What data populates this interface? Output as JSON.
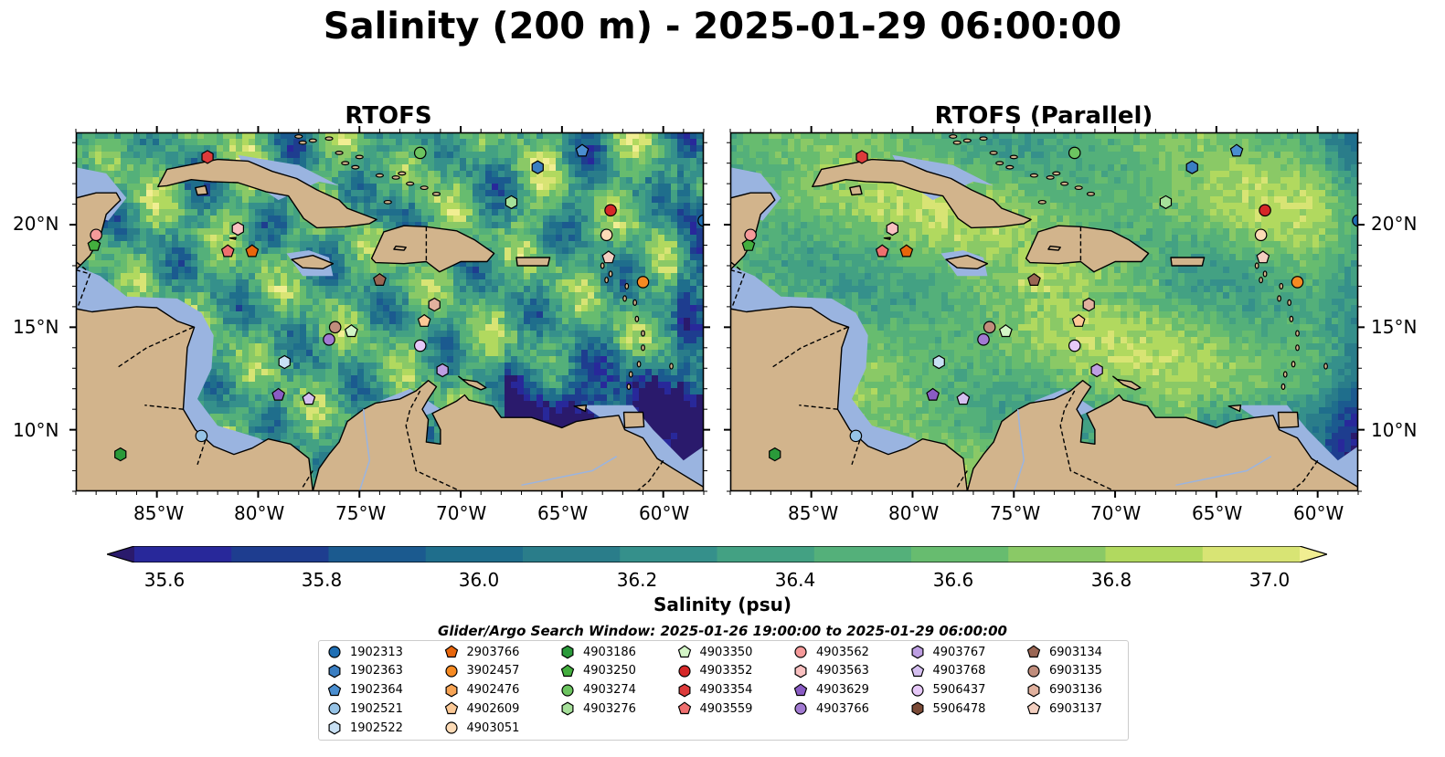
{
  "title": "Salinity (200 m) - 2025-01-29 06:00:00",
  "panels": [
    {
      "title": "RTOFS",
      "variant": "standard"
    },
    {
      "title": "RTOFS (Parallel)",
      "variant": "parallel"
    }
  ],
  "axes": {
    "lon_ticks": [
      "85°W",
      "80°W",
      "75°W",
      "70°W",
      "65°W",
      "60°W"
    ],
    "lat_ticks": [
      "20°N",
      "15°N",
      "10°N"
    ]
  },
  "colorbar": {
    "label": "Salinity (psu)",
    "tick_labels": [
      "35.6",
      "35.8",
      "36.0",
      "36.2",
      "36.4",
      "36.6",
      "36.8",
      "37.0"
    ],
    "colors": [
      "#2a1a6c",
      "#28289a",
      "#1e3d8f",
      "#1b5a8f",
      "#1f6e8c",
      "#2a7d8a",
      "#35908b",
      "#43a183",
      "#54b07a",
      "#67bc6f",
      "#8ac966",
      "#b1d95f",
      "#d8e474",
      "#f1ee92"
    ]
  },
  "colors": {
    "land": "#d2b48c",
    "shallow": "#9ab4e0",
    "low_salinity": "#2a1a6c"
  },
  "search_window": "Glider/Argo Search Window: 2025-01-26 19:00:00 to 2025-01-29 06:00:00",
  "legend": [
    {
      "id": "1902313",
      "color": "#1f6fb4",
      "shape": "circle"
    },
    {
      "id": "1902363",
      "color": "#3a7ec2",
      "shape": "hexagon"
    },
    {
      "id": "1902364",
      "color": "#4a8ed0",
      "shape": "pentagon"
    },
    {
      "id": "1902521",
      "color": "#96c3e6",
      "shape": "circle"
    },
    {
      "id": "1902522",
      "color": "#c8e0f4",
      "shape": "hexagon"
    },
    {
      "id": "2903766",
      "color": "#e8660c",
      "shape": "pentagon"
    },
    {
      "id": "3902457",
      "color": "#f68a22",
      "shape": "circle"
    },
    {
      "id": "4902476",
      "color": "#f7a455",
      "shape": "hexagon"
    },
    {
      "id": "4902609",
      "color": "#fcc996",
      "shape": "pentagon"
    },
    {
      "id": "4903051",
      "color": "#fddbb6",
      "shape": "circle"
    },
    {
      "id": "4903186",
      "color": "#2a9a3a",
      "shape": "hexagon"
    },
    {
      "id": "4903250",
      "color": "#43ae3e",
      "shape": "pentagon"
    },
    {
      "id": "4903274",
      "color": "#6cc460",
      "shape": "circle"
    },
    {
      "id": "4903276",
      "color": "#a6e09a",
      "shape": "hexagon"
    },
    {
      "id": "4903350",
      "color": "#d3f5c6",
      "shape": "pentagon"
    },
    {
      "id": "4903352",
      "color": "#d62728",
      "shape": "circle"
    },
    {
      "id": "4903354",
      "color": "#dd3b3b",
      "shape": "hexagon"
    },
    {
      "id": "4903559",
      "color": "#ef6f6f",
      "shape": "pentagon"
    },
    {
      "id": "4903562",
      "color": "#f59a9a",
      "shape": "circle"
    },
    {
      "id": "4903563",
      "color": "#f9c0c0",
      "shape": "hexagon"
    },
    {
      "id": "4903629",
      "color": "#8a5cc4",
      "shape": "pentagon"
    },
    {
      "id": "4903766",
      "color": "#a27ad2",
      "shape": "circle"
    },
    {
      "id": "4903767",
      "color": "#bd9ee2",
      "shape": "hexagon"
    },
    {
      "id": "4903768",
      "color": "#d5bff0",
      "shape": "pentagon"
    },
    {
      "id": "5906437",
      "color": "#e6c8f8",
      "shape": "circle"
    },
    {
      "id": "5906478",
      "color": "#7b4a36",
      "shape": "hexagon"
    },
    {
      "id": "6903134",
      "color": "#9a6654",
      "shape": "pentagon"
    },
    {
      "id": "6903135",
      "color": "#c08d7c",
      "shape": "circle"
    },
    {
      "id": "6903136",
      "color": "#e1b19e",
      "shape": "hexagon"
    },
    {
      "id": "6903137",
      "color": "#f3cfc0",
      "shape": "pentagon"
    }
  ]
}
